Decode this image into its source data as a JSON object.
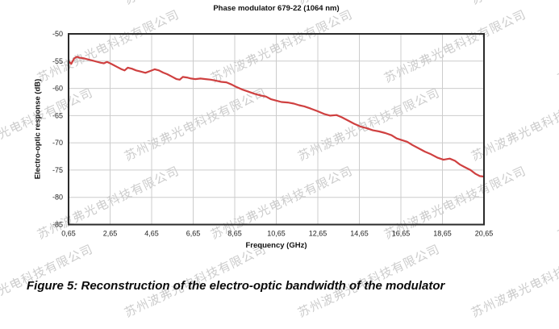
{
  "watermark": {
    "text": "苏州波弗光电科技有限公司"
  },
  "chart": {
    "title": "Phase modulator 679-22 (1064 nm)",
    "xlabel": "Frequency (GHz)",
    "ylabel": "Electro-optic response (dB)"
  },
  "caption": "Figure 5: Reconstruction of the electro-optic bandwidth of the modulator",
  "colors": {
    "curve": "#cf4040",
    "grid": "#cccccc",
    "plot_border": "#2b2b2b",
    "tick_text": "#222222",
    "watermark": "#cccccc"
  },
  "chart_data": {
    "type": "line",
    "title": "Phase modulator 679-22 (1064 nm)",
    "xlabel": "Frequency (GHz)",
    "ylabel": "Electro-optic response (dB)",
    "xlim": [
      0.65,
      20.65
    ],
    "ylim": [
      -85,
      -50
    ],
    "grid": true,
    "legend": false,
    "x_ticks": {
      "values": [
        0.65,
        2.65,
        4.65,
        6.65,
        8.65,
        10.65,
        12.65,
        14.65,
        16.65,
        18.65,
        20.65
      ],
      "labels": [
        "0,65",
        "2,65",
        "4,65",
        "6,65",
        "8,65",
        "10,65",
        "12,65",
        "14,65",
        "16,65",
        "18,65",
        "20,65"
      ]
    },
    "y_ticks": {
      "values": [
        -50,
        -55,
        -60,
        -65,
        -70,
        -75,
        -80,
        -85
      ],
      "labels": [
        "-50",
        "-55",
        "-60",
        "-65",
        "-70",
        "-75",
        "-80",
        "-85"
      ]
    },
    "series": [
      {
        "name": "Electro-optic response",
        "x": [
          0.65,
          0.78,
          0.92,
          1.05,
          1.2,
          1.4,
          1.6,
          1.8,
          2.0,
          2.2,
          2.35,
          2.5,
          2.65,
          2.8,
          3.0,
          3.2,
          3.35,
          3.5,
          3.7,
          3.9,
          4.1,
          4.35,
          4.6,
          4.8,
          5.0,
          5.2,
          5.4,
          5.6,
          5.85,
          6.0,
          6.15,
          6.35,
          6.55,
          6.75,
          7.0,
          7.25,
          7.5,
          7.75,
          8.0,
          8.25,
          8.5,
          8.7,
          9.0,
          9.3,
          9.6,
          9.9,
          10.15,
          10.4,
          10.6,
          10.9,
          11.2,
          11.5,
          11.75,
          12.0,
          12.3,
          12.65,
          12.95,
          13.25,
          13.55,
          13.8,
          14.1,
          14.4,
          14.7,
          15.0,
          15.3,
          15.6,
          15.9,
          16.2,
          16.45,
          16.7,
          16.95,
          17.2,
          17.5,
          17.8,
          18.1,
          18.4,
          18.7,
          19.0,
          19.25,
          19.5,
          19.75,
          20.0,
          20.25,
          20.45,
          20.65
        ],
        "y": [
          -55.0,
          -55.5,
          -54.5,
          -54.2,
          -54.4,
          -54.5,
          -54.7,
          -54.9,
          -55.1,
          -55.3,
          -55.4,
          -55.15,
          -55.4,
          -55.7,
          -56.1,
          -56.5,
          -56.7,
          -56.2,
          -56.4,
          -56.7,
          -56.9,
          -57.15,
          -56.8,
          -56.5,
          -56.7,
          -57.1,
          -57.4,
          -57.8,
          -58.3,
          -58.4,
          -57.9,
          -58.0,
          -58.2,
          -58.3,
          -58.2,
          -58.3,
          -58.4,
          -58.6,
          -58.8,
          -58.9,
          -59.3,
          -59.7,
          -60.2,
          -60.6,
          -61.0,
          -61.3,
          -61.5,
          -62.0,
          -62.2,
          -62.5,
          -62.6,
          -62.8,
          -63.1,
          -63.3,
          -63.7,
          -64.2,
          -64.7,
          -65.0,
          -64.9,
          -65.3,
          -65.9,
          -66.5,
          -67.0,
          -67.3,
          -67.7,
          -67.9,
          -68.2,
          -68.6,
          -69.2,
          -69.5,
          -69.8,
          -70.4,
          -71.0,
          -71.6,
          -72.1,
          -72.7,
          -73.1,
          -72.9,
          -73.3,
          -74.0,
          -74.5,
          -75.0,
          -75.7,
          -76.1,
          -76.2
        ]
      }
    ]
  }
}
